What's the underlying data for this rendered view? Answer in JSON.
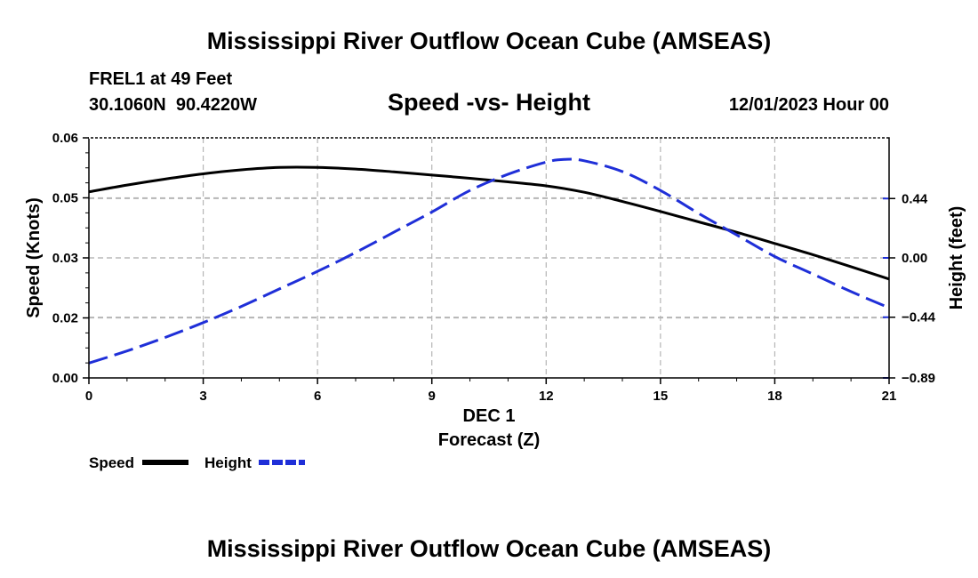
{
  "page": {
    "title": "Mississippi River Outflow Ocean Cube (AMSEAS)",
    "footer_title": "Mississippi River Outflow Ocean Cube (AMSEAS)"
  },
  "station": {
    "name": "FREL1 at 49 Feet",
    "coords": "30.1060N  90.4220W",
    "datetime": "12/01/2023 Hour 00"
  },
  "chart_data": {
    "type": "line",
    "title": "Speed -vs- Height",
    "xlabel_top": "DEC 1",
    "xlabel": "Forecast (Z)",
    "ylabel": "Speed (Knots)",
    "y2label": "Height (feet)",
    "xlim": [
      0,
      21
    ],
    "ylim": [
      0,
      0.06
    ],
    "y2lim": [
      -0.89,
      0.89
    ],
    "xticks": [
      0,
      3,
      6,
      9,
      12,
      15,
      18,
      21
    ],
    "xtick_labels": [
      "0",
      "3",
      "6",
      "9",
      "12",
      "15",
      "18",
      "21"
    ],
    "yticks": [
      0,
      0.015,
      0.03,
      0.045,
      0.06
    ],
    "ytick_labels": [
      "0.00",
      "0.02",
      "0.03",
      "0.05",
      "0.06"
    ],
    "y2ticks": [
      -0.89,
      -0.44,
      0,
      0.44
    ],
    "y2tick_labels": [
      "−0.89",
      "−0.44",
      "0.00",
      "0.44"
    ],
    "grid": true,
    "series": [
      {
        "name": "Speed",
        "axis": "left",
        "color": "#000000",
        "style": "solid",
        "x": [
          0,
          1,
          2,
          3,
          4,
          5,
          6,
          7,
          8,
          9,
          10,
          11,
          12,
          13,
          14,
          15,
          16,
          17,
          18,
          19,
          20,
          21
        ],
        "y": [
          0.0465,
          0.0482,
          0.0497,
          0.051,
          0.052,
          0.0526,
          0.0526,
          0.0522,
          0.0515,
          0.0507,
          0.0499,
          0.049,
          0.048,
          0.0464,
          0.0441,
          0.0416,
          0.039,
          0.0364,
          0.0336,
          0.0308,
          0.0278,
          0.0247
        ]
      },
      {
        "name": "Height",
        "axis": "right",
        "color": "#1f2fd8",
        "style": "dashed",
        "x": [
          0,
          1,
          2,
          3,
          4,
          5,
          6,
          7,
          8,
          9,
          10,
          11,
          12,
          12.5,
          13,
          14,
          15,
          16,
          17,
          18,
          19,
          20,
          21
        ],
        "y": [
          -0.78,
          -0.69,
          -0.59,
          -0.48,
          -0.36,
          -0.23,
          -0.1,
          0.04,
          0.19,
          0.34,
          0.5,
          0.62,
          0.71,
          0.73,
          0.72,
          0.64,
          0.5,
          0.33,
          0.17,
          0.01,
          -0.12,
          -0.25,
          -0.37
        ]
      }
    ],
    "legend": [
      {
        "label": "Speed",
        "color": "#000000",
        "style": "solid"
      },
      {
        "label": "Height",
        "color": "#1f2fd8",
        "style": "dashed"
      }
    ]
  }
}
